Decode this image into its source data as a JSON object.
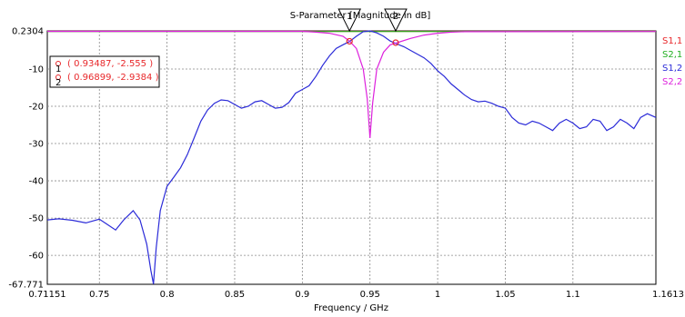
{
  "chart_data": {
    "type": "line",
    "title": "S-Parameter [Magnitude in dB]",
    "xlabel": "Frequency / GHz",
    "ylabel": "",
    "xlim": [
      0.71151,
      1.1613
    ],
    "ylim": [
      -67.771,
      0.2304
    ],
    "x_ticks": [
      "0.71151",
      "0.75",
      "0.8",
      "0.85",
      "0.9",
      "0.95",
      "1",
      "1.05",
      "1.1",
      "1.1613"
    ],
    "y_ticks": [
      "0.2304",
      "-10",
      "-20",
      "-30",
      "-40",
      "-50",
      "-60",
      "-67.771"
    ],
    "grid": true,
    "legend_position": "right",
    "series": [
      {
        "name": "S1,1",
        "color": "#e8282b",
        "x": [
          0.71151,
          0.9,
          0.93,
          0.95,
          0.97,
          1.0,
          1.1613
        ],
        "y": [
          0.1,
          0.1,
          0.1,
          0.1,
          0.1,
          0.1,
          0.1
        ]
      },
      {
        "name": "S2,1",
        "color": "#22b022",
        "x": [
          0.71151,
          0.9,
          0.93,
          0.95,
          0.97,
          1.0,
          1.1613
        ],
        "y": [
          0.05,
          0.05,
          0.05,
          0.05,
          0.05,
          0.05,
          0.05
        ]
      },
      {
        "name": "S1,2",
        "color": "#2b2bd8",
        "x": [
          0.71151,
          0.72,
          0.73,
          0.74,
          0.75,
          0.755,
          0.762,
          0.768,
          0.775,
          0.78,
          0.785,
          0.788,
          0.79,
          0.792,
          0.795,
          0.8,
          0.805,
          0.81,
          0.815,
          0.82,
          0.825,
          0.83,
          0.835,
          0.84,
          0.845,
          0.85,
          0.855,
          0.86,
          0.865,
          0.87,
          0.875,
          0.88,
          0.885,
          0.89,
          0.895,
          0.9,
          0.905,
          0.91,
          0.915,
          0.92,
          0.925,
          0.93,
          0.935,
          0.94,
          0.945,
          0.95,
          0.955,
          0.96,
          0.965,
          0.97,
          0.975,
          0.98,
          0.985,
          0.99,
          0.995,
          1.0,
          1.005,
          1.01,
          1.015,
          1.02,
          1.025,
          1.03,
          1.035,
          1.04,
          1.045,
          1.05,
          1.055,
          1.06,
          1.065,
          1.07,
          1.075,
          1.08,
          1.085,
          1.09,
          1.095,
          1.1,
          1.105,
          1.11,
          1.115,
          1.12,
          1.125,
          1.13,
          1.135,
          1.14,
          1.145,
          1.15,
          1.155,
          1.1613
        ],
        "y": [
          -50.5,
          -50.2,
          -50.6,
          -51.3,
          -50.3,
          -51.5,
          -53.2,
          -50.5,
          -48.0,
          -50.5,
          -57.0,
          -64.0,
          -67.7,
          -58.0,
          -48.0,
          -41.5,
          -39.0,
          -36.5,
          -33.0,
          -28.5,
          -24.0,
          -21.0,
          -19.2,
          -18.3,
          -18.5,
          -19.5,
          -20.5,
          -20.0,
          -18.8,
          -18.5,
          -19.5,
          -20.5,
          -20.3,
          -19.0,
          -16.5,
          -15.5,
          -14.5,
          -12.0,
          -9.0,
          -6.5,
          -4.5,
          -3.5,
          -2.6,
          -1.2,
          0.0,
          0.25,
          -0.3,
          -1.2,
          -2.5,
          -3.3,
          -4.0,
          -5.0,
          -6.0,
          -7.0,
          -8.5,
          -10.5,
          -12.0,
          -14.0,
          -15.5,
          -17.0,
          -18.2,
          -18.8,
          -18.6,
          -19.2,
          -20.0,
          -20.5,
          -23.0,
          -24.5,
          -25.0,
          -24.0,
          -24.5,
          -25.5,
          -26.5,
          -24.5,
          -23.5,
          -24.5,
          -26.0,
          -25.5,
          -23.5,
          -24.0,
          -26.5,
          -25.5,
          -23.5,
          -24.5,
          -26.0,
          -23.0,
          -22.0,
          -23.0
        ]
      },
      {
        "name": "S2,2",
        "color": "#dd22dd",
        "x": [
          0.71151,
          0.9,
          0.91,
          0.92,
          0.93,
          0.935,
          0.94,
          0.945,
          0.948,
          0.95,
          0.952,
          0.955,
          0.96,
          0.965,
          0.97,
          0.98,
          0.99,
          1.0,
          1.01,
          1.02,
          1.1613
        ],
        "y": [
          0.1,
          0.1,
          -0.1,
          -0.4,
          -1.2,
          -2.555,
          -4.5,
          -10.0,
          -18.0,
          -28.5,
          -19.0,
          -10.0,
          -5.5,
          -3.5,
          -2.94,
          -1.8,
          -0.9,
          -0.4,
          -0.1,
          0.0,
          0.05
        ]
      }
    ],
    "markers": [
      {
        "number": "1",
        "label": "( 0.93487, -2.555 )",
        "x": 0.93487,
        "y": -2.555
      },
      {
        "number": "2",
        "label": "( 0.96899, -2.9384 )",
        "x": 0.96899,
        "y": -2.9384
      }
    ]
  }
}
